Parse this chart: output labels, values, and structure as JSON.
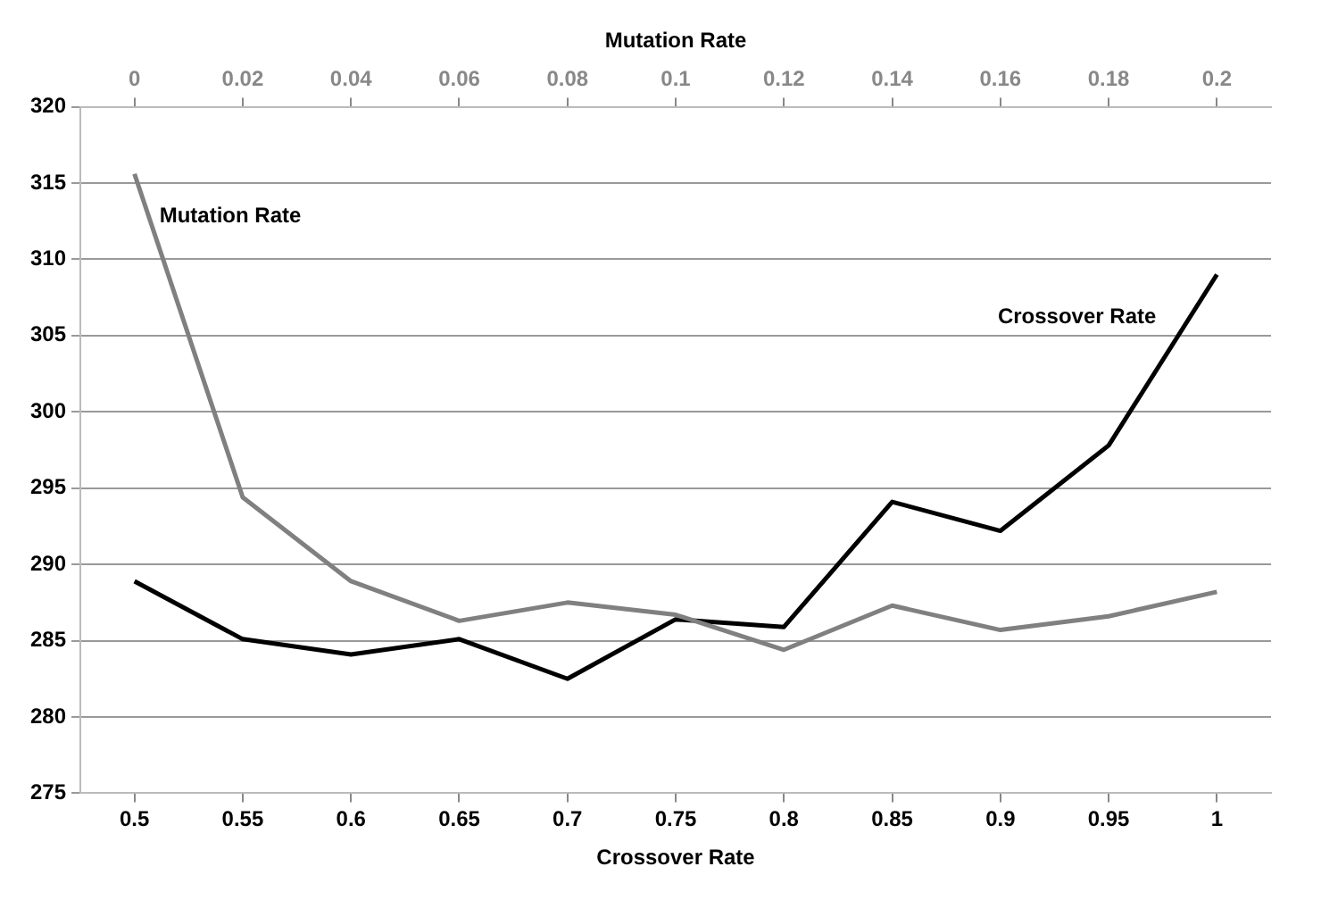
{
  "chart_data": {
    "type": "line",
    "xlabel": "Crossover Rate",
    "x2label": "Mutation Rate",
    "xlim": [
      0.475,
      1.025
    ],
    "xticks": [
      0.5,
      0.55,
      0.6,
      0.65,
      0.7,
      0.75,
      0.8,
      0.85,
      0.9,
      0.95,
      1
    ],
    "x2lim": [
      -0.01,
      0.21
    ],
    "x2ticks": [
      0,
      0.02,
      0.04,
      0.06,
      0.08,
      0.1,
      0.12,
      0.14,
      0.16,
      0.18,
      0.2
    ],
    "ylim": [
      275,
      320
    ],
    "yticks": [
      275,
      280,
      285,
      290,
      295,
      300,
      305,
      310,
      315,
      320
    ],
    "grid": "y",
    "legend": false,
    "marker": "none",
    "line_style": "solid",
    "series": [
      {
        "name": "Mutation Rate",
        "color": "#808080",
        "axis": "x2",
        "x": [
          0,
          0.02,
          0.04,
          0.06,
          0.08,
          0.1,
          0.12,
          0.14,
          0.16,
          0.18,
          0.2
        ],
        "values": [
          315.6,
          294.4,
          288.9,
          286.3,
          287.5,
          286.7,
          284.4,
          287.3,
          285.7,
          286.6,
          288.2
        ]
      },
      {
        "name": "Crossover Rate",
        "color": "#000000",
        "x": [
          0.5,
          0.55,
          0.6,
          0.65,
          0.7,
          0.75,
          0.8,
          0.85,
          0.9,
          0.95,
          1
        ],
        "values": [
          288.9,
          285.1,
          284.1,
          285.1,
          282.5,
          286.4,
          285.9,
          294.1,
          292.2,
          297.8,
          309
        ]
      }
    ]
  }
}
